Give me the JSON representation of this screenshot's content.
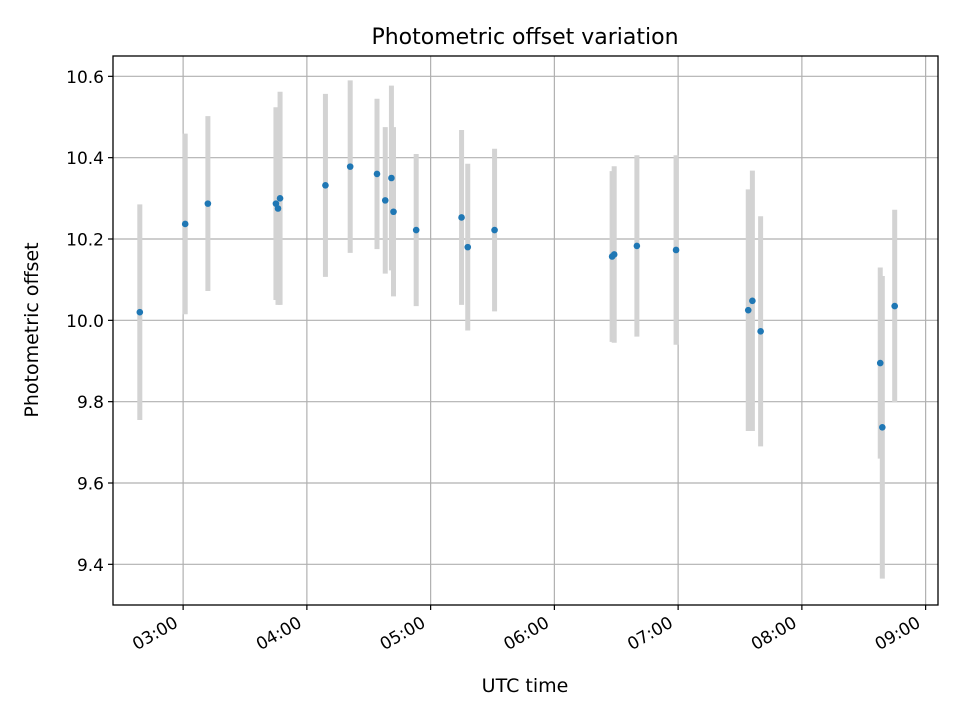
{
  "chart_data": {
    "type": "scatter",
    "title": "Photometric offset variation",
    "xlabel": "UTC time",
    "ylabel": "Photometric offset",
    "xlim": [
      "02:26",
      "09:06"
    ],
    "ylim": [
      9.3,
      10.65
    ],
    "x_ticks": [
      "03:00",
      "04:00",
      "05:00",
      "06:00",
      "07:00",
      "08:00",
      "09:00"
    ],
    "y_ticks": [
      9.4,
      9.6,
      9.8,
      10.0,
      10.2,
      10.4,
      10.6
    ],
    "y_tick_labels": [
      "9.4",
      "9.6",
      "9.8",
      "10.0",
      "10.2",
      "10.4",
      "10.6"
    ],
    "grid": true,
    "colors": {
      "point": "#1f77b4",
      "errorbar": "#d3d3d3",
      "grid": "#b0b0b0"
    },
    "points": [
      {
        "time": "02:39",
        "y": 10.02,
        "err": 0.265
      },
      {
        "time": "03:01",
        "y": 10.237,
        "err": 0.222
      },
      {
        "time": "03:12",
        "y": 10.287,
        "err": 0.215
      },
      {
        "time": "03:45",
        "y": 10.287,
        "err": 0.237
      },
      {
        "time": "03:46",
        "y": 10.275,
        "err": 0.237
      },
      {
        "time": "03:47",
        "y": 10.3,
        "err": 0.262
      },
      {
        "time": "04:09",
        "y": 10.332,
        "err": 0.225
      },
      {
        "time": "04:21",
        "y": 10.378,
        "err": 0.212
      },
      {
        "time": "04:34",
        "y": 10.36,
        "err": 0.185
      },
      {
        "time": "04:38",
        "y": 10.295,
        "err": 0.18
      },
      {
        "time": "04:41",
        "y": 10.35,
        "err": 0.227
      },
      {
        "time": "04:42",
        "y": 10.267,
        "err": 0.208
      },
      {
        "time": "04:53",
        "y": 10.222,
        "err": 0.187
      },
      {
        "time": "05:15",
        "y": 10.253,
        "err": 0.215
      },
      {
        "time": "05:18",
        "y": 10.18,
        "err": 0.205
      },
      {
        "time": "05:31",
        "y": 10.222,
        "err": 0.2
      },
      {
        "time": "06:28",
        "y": 10.157,
        "err": 0.21
      },
      {
        "time": "06:29",
        "y": 10.162,
        "err": 0.217
      },
      {
        "time": "06:40",
        "y": 10.183,
        "err": 0.223
      },
      {
        "time": "06:59",
        "y": 10.173,
        "err": 0.233
      },
      {
        "time": "07:34",
        "y": 10.025,
        "err": 0.297
      },
      {
        "time": "07:36",
        "y": 10.048,
        "err": 0.32
      },
      {
        "time": "07:40",
        "y": 9.973,
        "err": 0.283
      },
      {
        "time": "08:38",
        "y": 9.895,
        "err": 0.235
      },
      {
        "time": "08:39",
        "y": 9.737,
        "err": 0.372
      },
      {
        "time": "08:45",
        "y": 10.035,
        "err": 0.237
      }
    ]
  }
}
